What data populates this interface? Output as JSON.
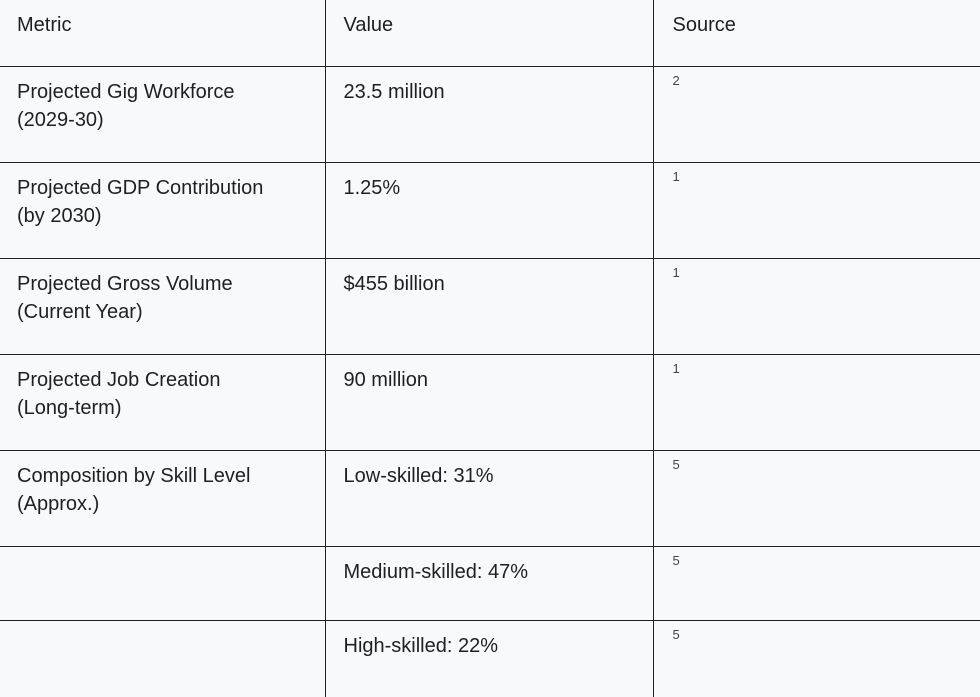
{
  "table": {
    "headers": [
      "Metric",
      "Value",
      "Source"
    ],
    "rows": [
      {
        "metric_line1": "Projected Gig Workforce",
        "metric_line2": "(2029-30)",
        "value": "23.5 million",
        "source": "2"
      },
      {
        "metric_line1": "Projected GDP Contribution",
        "metric_line2": "(by 2030)",
        "value": "1.25%",
        "source": "1"
      },
      {
        "metric_line1": "Projected Gross Volume",
        "metric_line2": "(Current Year)",
        "value": "$455 billion",
        "source": "1"
      },
      {
        "metric_line1": "Projected Job Creation",
        "metric_line2": "(Long-term)",
        "value": "90 million",
        "source": "1"
      },
      {
        "metric_line1": "Composition by Skill Level",
        "metric_line2": "(Approx.)",
        "value": "Low-skilled: 31%",
        "source": "5"
      },
      {
        "metric_line1": "",
        "metric_line2": "",
        "value": "Medium-skilled: 47%",
        "source": "5"
      },
      {
        "metric_line1": "",
        "metric_line2": "",
        "value": "High-skilled: 22%",
        "source": "5"
      }
    ]
  }
}
